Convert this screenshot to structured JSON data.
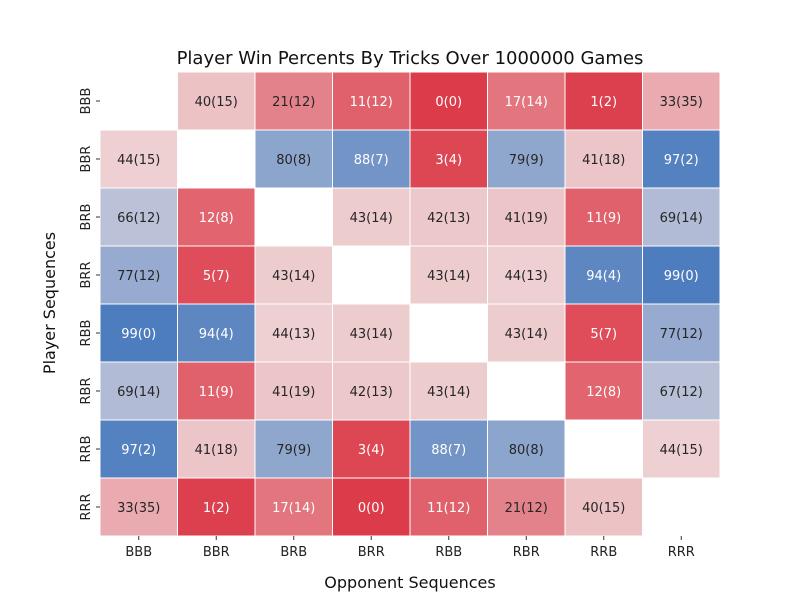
{
  "chart_data": {
    "type": "heatmap",
    "title": "Player Win Percents By Tricks Over 1000000 Games",
    "xlabel": "Opponent Sequences",
    "ylabel": "Player Sequences",
    "x_categories": [
      "BBB",
      "BBR",
      "BRB",
      "BRR",
      "RBB",
      "RBR",
      "RRB",
      "RRR"
    ],
    "y_categories": [
      "BBB",
      "BBR",
      "BRB",
      "BRR",
      "RBB",
      "RBR",
      "RRB",
      "RRR"
    ],
    "values": [
      [
        null,
        40,
        21,
        11,
        0,
        17,
        1,
        33
      ],
      [
        44,
        null,
        80,
        88,
        3,
        79,
        41,
        97
      ],
      [
        66,
        12,
        null,
        43,
        42,
        41,
        11,
        69
      ],
      [
        77,
        5,
        43,
        null,
        43,
        44,
        94,
        99
      ],
      [
        99,
        94,
        44,
        43,
        null,
        43,
        5,
        77
      ],
      [
        69,
        11,
        41,
        42,
        43,
        null,
        12,
        67
      ],
      [
        97,
        41,
        79,
        3,
        88,
        80,
        null,
        44
      ],
      [
        33,
        1,
        17,
        0,
        11,
        21,
        40,
        null
      ]
    ],
    "annotations": [
      [
        "",
        "40(15)",
        "21(12)",
        "11(12)",
        "0(0)",
        "17(14)",
        "1(2)",
        "33(35)"
      ],
      [
        "44(15)",
        "",
        "80(8)",
        "88(7)",
        "3(4)",
        "79(9)",
        "41(18)",
        "97(2)"
      ],
      [
        "66(12)",
        "12(8)",
        "",
        "43(14)",
        "42(13)",
        "41(19)",
        "11(9)",
        "69(14)"
      ],
      [
        "77(12)",
        "5(7)",
        "43(14)",
        "",
        "43(14)",
        "44(13)",
        "94(4)",
        "99(0)"
      ],
      [
        "99(0)",
        "94(4)",
        "44(13)",
        "43(14)",
        "",
        "43(14)",
        "5(7)",
        "77(12)"
      ],
      [
        "69(14)",
        "11(9)",
        "41(19)",
        "42(13)",
        "43(14)",
        "",
        "12(8)",
        "67(12)"
      ],
      [
        "97(2)",
        "41(18)",
        "79(9)",
        "3(4)",
        "88(7)",
        "80(8)",
        "",
        "44(15)"
      ],
      [
        "33(35)",
        "1(2)",
        "17(14)",
        "0(0)",
        "11(12)",
        "21(12)",
        "40(15)",
        ""
      ]
    ],
    "color_scale": {
      "low": "#dc3c4a",
      "mid": "#f0e3e4",
      "high": "#4a7bbd",
      "vmin": 0,
      "vmax": 100
    },
    "empty_cell_color": "#ffffff",
    "grid": false,
    "legend": "none"
  }
}
